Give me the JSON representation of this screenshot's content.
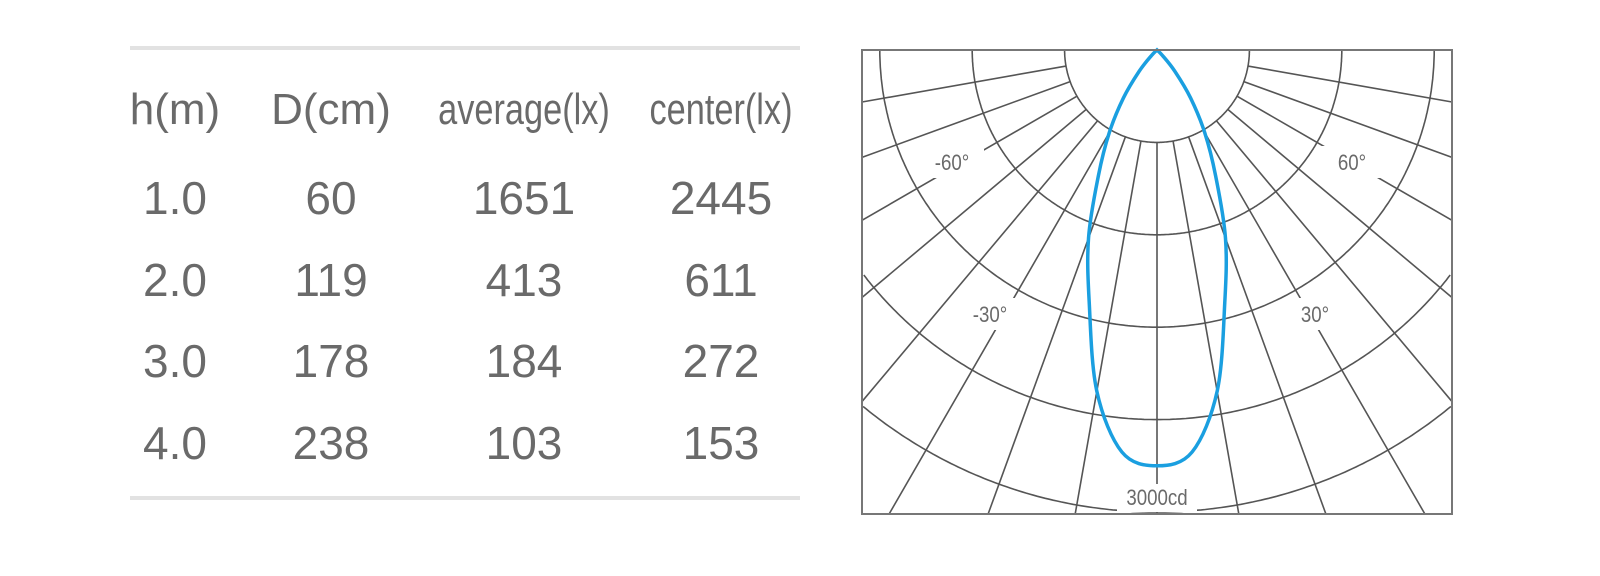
{
  "table": {
    "headers": [
      "h(m)",
      "D(cm)",
      "average(lx)",
      "center(lx)"
    ],
    "rows": [
      [
        "1.0",
        "60",
        "1651",
        "2445"
      ],
      [
        "2.0",
        "119",
        "413",
        "611"
      ],
      [
        "3.0",
        "178",
        "184",
        "272"
      ],
      [
        "4.0",
        "238",
        "103",
        "153"
      ]
    ]
  },
  "chart_data": {
    "type": "polar",
    "title": "",
    "radial_unit": "cd",
    "radial_max": 3000,
    "radial_max_label": "3000cd",
    "ring_step_cd": 600,
    "angle_step_deg": 10,
    "angle_labels": [
      "-60°",
      "60°",
      "-30°",
      "30°"
    ],
    "curve_color": "#1a9fe0",
    "grid_color": "#555555",
    "series": [
      {
        "angles_deg": [
          0,
          5,
          10,
          15,
          20,
          25,
          30,
          35,
          40,
          45,
          50
        ],
        "values_cd": [
          2700,
          2620,
          2250,
          1700,
          1300,
          900,
          620,
          380,
          180,
          50,
          0
        ],
        "symmetric": true
      }
    ]
  }
}
